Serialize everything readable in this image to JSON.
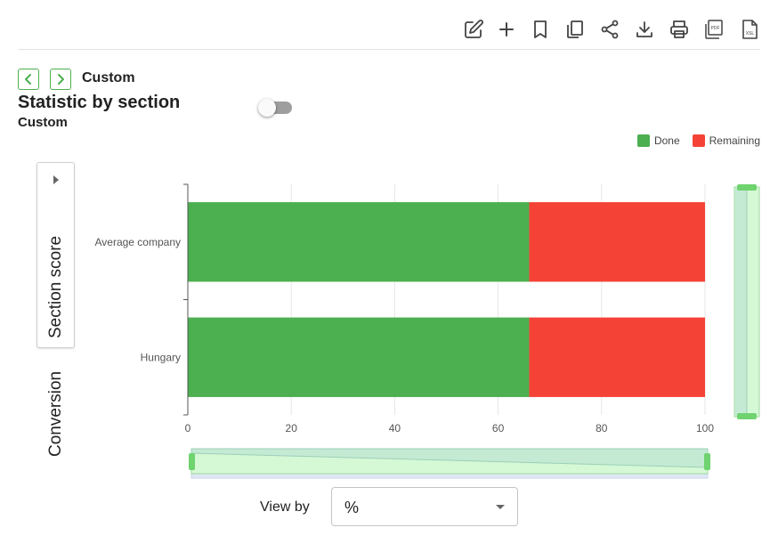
{
  "toolbar": {
    "icons": [
      "edit-icon",
      "plus-icon",
      "bookmark-icon",
      "copy-icon",
      "share-icon",
      "download-icon",
      "print-icon",
      "pdf-icon",
      "xsl-icon"
    ],
    "pdf_text": "PDF",
    "xsl_text": "XSL"
  },
  "nav": {
    "label": "Custom"
  },
  "header": {
    "title": "Statistic by section",
    "subtitle": "Custom"
  },
  "side_tabs": [
    {
      "label": "Section score",
      "active": true
    },
    {
      "label": "Conversion",
      "active": false
    }
  ],
  "view_by": {
    "label": "View by",
    "value": "%"
  },
  "colors": {
    "done": "#4caf50",
    "remaining": "#f44336",
    "accent": "#4caf50",
    "zoom_fill": "#d5f8d5"
  },
  "chart_data": {
    "type": "bar",
    "orientation": "horizontal",
    "stacked": true,
    "categories": [
      "Average company",
      "Hungary"
    ],
    "series": [
      {
        "name": "Done",
        "values": [
          66,
          66
        ],
        "color": "#4caf50"
      },
      {
        "name": "Remaining",
        "values": [
          34,
          34
        ],
        "color": "#f44336"
      }
    ],
    "title": "",
    "xlabel": "",
    "ylabel": "",
    "xlim": [
      0,
      100
    ],
    "xticks": [
      0,
      20,
      40,
      60,
      80,
      100
    ],
    "grid": true,
    "legend": "top-right",
    "zoom_sliders": {
      "x": true,
      "y": true
    }
  }
}
